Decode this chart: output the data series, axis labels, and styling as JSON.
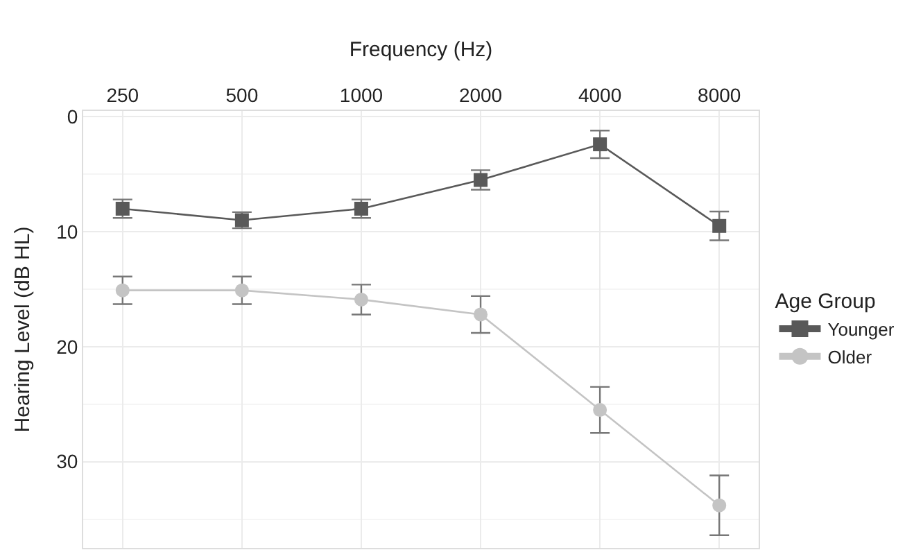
{
  "chart_data": {
    "type": "line",
    "xlabel": "Frequency (Hz)",
    "ylabel": "Hearing Level (dB HL)",
    "legend_title": "Age Group",
    "categories": [
      "250",
      "500",
      "1000",
      "2000",
      "4000",
      "8000"
    ],
    "series": [
      {
        "name": "Younger",
        "color": "#595959",
        "marker": "square",
        "values": [
          8.0,
          9.0,
          8.0,
          5.5,
          2.4,
          9.5
        ],
        "errors": [
          0.8,
          0.7,
          0.8,
          0.85,
          1.2,
          1.25
        ]
      },
      {
        "name": "Older",
        "color": "#c4c4c4",
        "marker": "circle",
        "values": [
          15.1,
          15.1,
          15.9,
          17.2,
          25.5,
          33.8
        ],
        "errors": [
          1.2,
          1.2,
          1.3,
          1.6,
          2.0,
          2.6
        ]
      }
    ],
    "ylim": [
      37.5,
      -0.5
    ],
    "yticks": [
      0,
      10,
      20,
      30
    ],
    "grid": true,
    "legend": "right",
    "line_style": "solid"
  }
}
